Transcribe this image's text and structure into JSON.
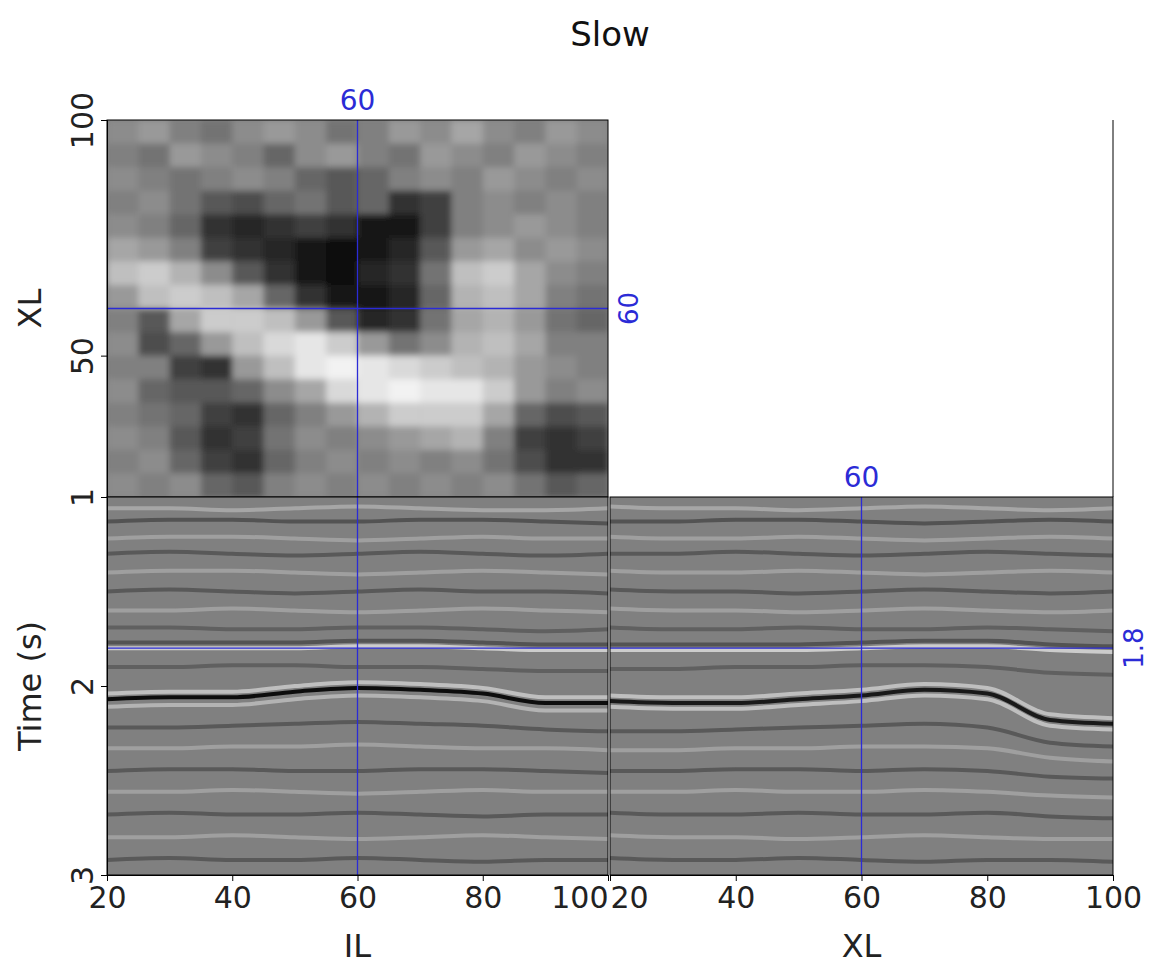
{
  "chart_data": [
    {
      "type": "heatmap",
      "title": "Slow",
      "ylabel": "XL",
      "xlim": [
        20,
        100
      ],
      "ylim": [
        20,
        100
      ],
      "yticks": [
        50,
        100
      ],
      "tick_labels": "y",
      "zlim": [
        -1,
        1
      ],
      "crosshair": {
        "x": 60,
        "y": 60
      },
      "x": [
        22.5,
        27.5,
        32.5,
        37.5,
        42.5,
        47.5,
        52.5,
        57.5,
        62.5,
        67.5,
        72.5,
        77.5,
        82.5,
        87.5,
        92.5,
        97.5
      ],
      "y": [
        97.5,
        92.5,
        87.5,
        82.5,
        77.5,
        72.5,
        67.5,
        62.5,
        57.5,
        52.5,
        47.5,
        42.5,
        37.5,
        32.5,
        27.5,
        22.5
      ],
      "cells": [
        [
          0.1,
          0.2,
          0.0,
          -0.1,
          0.1,
          0.2,
          0.1,
          -0.1,
          0.0,
          0.2,
          0.1,
          0.3,
          0.1,
          0.0,
          0.2,
          0.1
        ],
        [
          0.0,
          -0.1,
          0.2,
          0.1,
          0.0,
          -0.2,
          0.1,
          0.2,
          0.0,
          -0.1,
          0.2,
          0.1,
          0.0,
          0.2,
          0.1,
          0.0
        ],
        [
          0.1,
          0.0,
          -0.1,
          0.0,
          0.1,
          0.0,
          -0.2,
          -0.3,
          -0.2,
          0.0,
          0.1,
          0.0,
          0.2,
          0.1,
          0.0,
          0.1
        ],
        [
          0.0,
          0.1,
          -0.1,
          -0.3,
          -0.4,
          -0.2,
          -0.1,
          -0.3,
          -0.2,
          -0.6,
          -0.5,
          0.0,
          0.1,
          0.0,
          0.1,
          0.0
        ],
        [
          0.1,
          0.0,
          -0.2,
          -0.6,
          -0.7,
          -0.6,
          -0.5,
          -0.6,
          -0.8,
          -0.8,
          -0.5,
          0.0,
          0.1,
          0.2,
          0.1,
          0.0
        ],
        [
          0.3,
          0.2,
          0.0,
          -0.5,
          -0.6,
          -0.7,
          -0.8,
          -0.9,
          -0.8,
          -0.7,
          -0.3,
          0.2,
          0.3,
          0.1,
          0.2,
          0.1
        ],
        [
          0.5,
          0.6,
          0.4,
          0.1,
          -0.3,
          -0.6,
          -0.8,
          -0.9,
          -0.7,
          -0.6,
          -0.1,
          0.5,
          0.6,
          0.3,
          0.1,
          0.0
        ],
        [
          0.2,
          0.5,
          0.6,
          0.5,
          0.3,
          -0.2,
          -0.6,
          -0.8,
          -0.8,
          -0.7,
          -0.2,
          0.4,
          0.5,
          0.3,
          0.0,
          -0.1
        ],
        [
          0.0,
          -0.3,
          0.3,
          0.6,
          0.6,
          0.5,
          0.2,
          -0.3,
          -0.7,
          -0.6,
          -0.1,
          0.3,
          0.4,
          0.2,
          -0.1,
          -0.2
        ],
        [
          0.1,
          -0.4,
          -0.2,
          0.2,
          0.5,
          0.7,
          0.8,
          0.6,
          0.2,
          -0.1,
          0.1,
          0.4,
          0.5,
          0.3,
          0.0,
          0.0
        ],
        [
          0.0,
          0.0,
          -0.5,
          -0.6,
          0.2,
          0.5,
          0.8,
          0.9,
          0.8,
          0.7,
          0.6,
          0.5,
          0.4,
          0.2,
          0.1,
          0.0
        ],
        [
          0.1,
          -0.2,
          -0.3,
          -0.3,
          -0.2,
          0.1,
          0.3,
          0.7,
          0.8,
          0.9,
          0.8,
          0.8,
          0.6,
          0.2,
          0.0,
          0.1
        ],
        [
          0.0,
          -0.1,
          -0.2,
          -0.5,
          -0.6,
          -0.2,
          0.0,
          0.2,
          0.4,
          0.6,
          0.6,
          0.6,
          0.3,
          -0.2,
          -0.4,
          -0.3
        ],
        [
          0.1,
          0.0,
          -0.3,
          -0.6,
          -0.5,
          -0.1,
          0.1,
          0.0,
          0.1,
          0.2,
          0.3,
          0.4,
          0.0,
          -0.5,
          -0.6,
          -0.5
        ],
        [
          0.0,
          0.1,
          -0.2,
          -0.5,
          -0.6,
          -0.2,
          0.0,
          0.1,
          0.0,
          0.1,
          0.0,
          0.1,
          -0.1,
          -0.4,
          -0.6,
          -0.6
        ],
        [
          0.1,
          0.0,
          0.1,
          -0.2,
          -0.3,
          0.0,
          0.1,
          0.0,
          0.1,
          0.0,
          0.1,
          0.0,
          0.1,
          -0.1,
          -0.3,
          -0.2
        ]
      ]
    },
    {
      "type": "line",
      "xlabel": "IL",
      "ylabel": "Time (s)",
      "xlim": [
        20,
        100
      ],
      "ylim": [
        1,
        3
      ],
      "xticks": [
        20,
        40,
        60,
        80,
        100
      ],
      "yticks": [
        1,
        2,
        3
      ],
      "zlim": [
        -1,
        1
      ],
      "crosshair": {
        "x": 60,
        "y": 1.8
      },
      "x": [
        20,
        30,
        40,
        50,
        60,
        70,
        80,
        90,
        100
      ],
      "series": [
        {
          "values": [
            1.06,
            1.06,
            1.07,
            1.06,
            1.05,
            1.06,
            1.07,
            1.07,
            1.06
          ],
          "amplitude": 0.3
        },
        {
          "values": [
            1.13,
            1.12,
            1.12,
            1.13,
            1.13,
            1.12,
            1.12,
            1.13,
            1.14
          ],
          "amplitude": -0.35
        },
        {
          "values": [
            1.22,
            1.21,
            1.21,
            1.22,
            1.23,
            1.22,
            1.21,
            1.22,
            1.22
          ],
          "amplitude": 0.25
        },
        {
          "values": [
            1.3,
            1.29,
            1.3,
            1.31,
            1.3,
            1.29,
            1.3,
            1.31,
            1.3
          ],
          "amplitude": -0.3
        },
        {
          "values": [
            1.4,
            1.39,
            1.39,
            1.4,
            1.41,
            1.4,
            1.39,
            1.4,
            1.41
          ],
          "amplitude": 0.25
        },
        {
          "values": [
            1.5,
            1.49,
            1.5,
            1.51,
            1.5,
            1.49,
            1.5,
            1.5,
            1.51
          ],
          "amplitude": -0.3
        },
        {
          "values": [
            1.6,
            1.6,
            1.59,
            1.6,
            1.61,
            1.6,
            1.59,
            1.6,
            1.61
          ],
          "amplitude": 0.25
        },
        {
          "values": [
            1.69,
            1.69,
            1.7,
            1.7,
            1.69,
            1.69,
            1.7,
            1.71,
            1.7
          ],
          "amplitude": -0.25
        },
        {
          "values": [
            1.77,
            1.77,
            1.77,
            1.77,
            1.76,
            1.76,
            1.77,
            1.78,
            1.78
          ],
          "amplitude": -0.35
        },
        {
          "values": [
            1.8,
            1.8,
            1.8,
            1.8,
            1.79,
            1.79,
            1.8,
            1.81,
            1.81
          ],
          "amplitude": 0.6
        },
        {
          "values": [
            1.9,
            1.9,
            1.89,
            1.89,
            1.9,
            1.9,
            1.91,
            1.92,
            1.92
          ],
          "amplitude": -0.25
        },
        {
          "values": [
            2.04,
            2.03,
            2.03,
            2.0,
            1.98,
            1.99,
            2.01,
            2.06,
            2.06
          ],
          "amplitude": 0.5
        },
        {
          "values": [
            2.07,
            2.06,
            2.06,
            2.03,
            2.01,
            2.02,
            2.04,
            2.09,
            2.09
          ],
          "amplitude": -0.9
        },
        {
          "values": [
            2.11,
            2.1,
            2.1,
            2.07,
            2.05,
            2.06,
            2.08,
            2.13,
            2.13
          ],
          "amplitude": 0.4
        },
        {
          "values": [
            2.22,
            2.22,
            2.21,
            2.2,
            2.19,
            2.2,
            2.21,
            2.23,
            2.24
          ],
          "amplitude": -0.3
        },
        {
          "values": [
            2.33,
            2.33,
            2.32,
            2.32,
            2.31,
            2.32,
            2.33,
            2.33,
            2.34
          ],
          "amplitude": 0.25
        },
        {
          "values": [
            2.45,
            2.44,
            2.44,
            2.45,
            2.45,
            2.44,
            2.44,
            2.45,
            2.46
          ],
          "amplitude": -0.3
        },
        {
          "values": [
            2.56,
            2.56,
            2.55,
            2.56,
            2.57,
            2.56,
            2.55,
            2.56,
            2.56
          ],
          "amplitude": 0.25
        },
        {
          "values": [
            2.68,
            2.67,
            2.68,
            2.68,
            2.67,
            2.68,
            2.69,
            2.68,
            2.68
          ],
          "amplitude": -0.3
        },
        {
          "values": [
            2.8,
            2.8,
            2.79,
            2.8,
            2.81,
            2.8,
            2.79,
            2.8,
            2.81
          ],
          "amplitude": 0.25
        },
        {
          "values": [
            2.92,
            2.91,
            2.92,
            2.92,
            2.91,
            2.92,
            2.93,
            2.92,
            2.92
          ],
          "amplitude": -0.3
        }
      ]
    },
    {
      "type": "line",
      "xlabel": "XL",
      "xlim": [
        20,
        100
      ],
      "ylim": [
        1,
        3
      ],
      "xticks": [
        20,
        40,
        60,
        80,
        100
      ],
      "tick_labels": "x",
      "zlim": [
        -1,
        1
      ],
      "crosshair": {
        "x": 60,
        "y": 1.8
      },
      "x": [
        20,
        30,
        40,
        50,
        60,
        70,
        80,
        90,
        100
      ],
      "series": [
        {
          "values": [
            1.05,
            1.06,
            1.06,
            1.07,
            1.06,
            1.05,
            1.06,
            1.07,
            1.06
          ],
          "amplitude": 0.3
        },
        {
          "values": [
            1.13,
            1.13,
            1.12,
            1.12,
            1.13,
            1.14,
            1.13,
            1.12,
            1.13
          ],
          "amplitude": -0.35
        },
        {
          "values": [
            1.21,
            1.22,
            1.22,
            1.21,
            1.22,
            1.23,
            1.22,
            1.21,
            1.22
          ],
          "amplitude": 0.25
        },
        {
          "values": [
            1.3,
            1.3,
            1.29,
            1.3,
            1.31,
            1.3,
            1.29,
            1.3,
            1.31
          ],
          "amplitude": -0.3
        },
        {
          "values": [
            1.39,
            1.4,
            1.4,
            1.39,
            1.4,
            1.41,
            1.4,
            1.39,
            1.4
          ],
          "amplitude": 0.25
        },
        {
          "values": [
            1.49,
            1.5,
            1.5,
            1.51,
            1.5,
            1.49,
            1.5,
            1.51,
            1.5
          ],
          "amplitude": -0.3
        },
        {
          "values": [
            1.59,
            1.6,
            1.6,
            1.61,
            1.6,
            1.59,
            1.6,
            1.61,
            1.6
          ],
          "amplitude": 0.25
        },
        {
          "values": [
            1.69,
            1.7,
            1.7,
            1.69,
            1.7,
            1.7,
            1.69,
            1.7,
            1.71
          ],
          "amplitude": -0.25
        },
        {
          "values": [
            1.78,
            1.78,
            1.78,
            1.78,
            1.77,
            1.76,
            1.76,
            1.78,
            1.79
          ],
          "amplitude": -0.35
        },
        {
          "values": [
            1.81,
            1.81,
            1.81,
            1.81,
            1.8,
            1.79,
            1.79,
            1.81,
            1.82
          ],
          "amplitude": 0.6
        },
        {
          "values": [
            1.91,
            1.91,
            1.9,
            1.9,
            1.89,
            1.89,
            1.9,
            1.93,
            1.94
          ],
          "amplitude": -0.25
        },
        {
          "values": [
            2.05,
            2.06,
            2.06,
            2.04,
            2.02,
            1.99,
            2.01,
            2.15,
            2.17
          ],
          "amplitude": 0.5
        },
        {
          "values": [
            2.08,
            2.09,
            2.09,
            2.07,
            2.05,
            2.02,
            2.04,
            2.18,
            2.2
          ],
          "amplitude": -0.8
        },
        {
          "values": [
            2.11,
            2.12,
            2.12,
            2.1,
            2.08,
            2.05,
            2.07,
            2.21,
            2.23
          ],
          "amplitude": 0.5
        },
        {
          "values": [
            2.24,
            2.24,
            2.23,
            2.22,
            2.21,
            2.2,
            2.22,
            2.3,
            2.32
          ],
          "amplitude": -0.3
        },
        {
          "values": [
            2.34,
            2.34,
            2.33,
            2.33,
            2.32,
            2.32,
            2.33,
            2.38,
            2.4
          ],
          "amplitude": 0.25
        },
        {
          "values": [
            2.45,
            2.45,
            2.44,
            2.44,
            2.45,
            2.44,
            2.45,
            2.48,
            2.49
          ],
          "amplitude": -0.3
        },
        {
          "values": [
            2.56,
            2.56,
            2.55,
            2.56,
            2.56,
            2.55,
            2.56,
            2.58,
            2.59
          ],
          "amplitude": 0.25
        },
        {
          "values": [
            2.67,
            2.68,
            2.68,
            2.67,
            2.68,
            2.68,
            2.67,
            2.69,
            2.7
          ],
          "amplitude": -0.3
        },
        {
          "values": [
            2.79,
            2.8,
            2.8,
            2.81,
            2.8,
            2.79,
            2.8,
            2.81,
            2.81
          ],
          "amplitude": 0.25
        },
        {
          "values": [
            2.91,
            2.92,
            2.92,
            2.91,
            2.92,
            2.93,
            2.92,
            2.92,
            2.93
          ],
          "amplitude": -0.3
        }
      ]
    }
  ]
}
